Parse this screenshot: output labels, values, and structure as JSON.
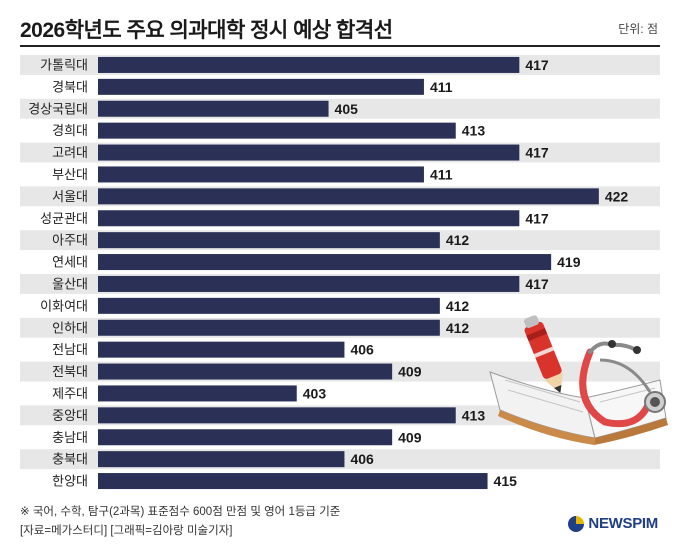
{
  "title": "2026학년도 주요 의과대학 정시 예상 합격선",
  "unit": "단위: 점",
  "footnote": "※ 국어, 수학, 탐구(2과목) 표준점수 600점 만점 및 영어 1등급 기준",
  "source": "[자료=메가스터디] [그래픽=김아랑 미술기자]",
  "brand": "NEWSPIM",
  "colors": {
    "bar": "#2a3056",
    "stripe": "#e7e7e7",
    "pencil": "#d9342b",
    "stethoscope": "#e04848"
  },
  "chart_data": {
    "type": "bar",
    "orientation": "horizontal",
    "categories": [
      "가톨릭대",
      "경북대",
      "경상국립대",
      "경희대",
      "고려대",
      "부산대",
      "서울대",
      "성균관대",
      "아주대",
      "연세대",
      "울산대",
      "이화여대",
      "인하대",
      "전남대",
      "전북대",
      "제주대",
      "중앙대",
      "충남대",
      "충북대",
      "한양대"
    ],
    "values": [
      417,
      411,
      405,
      413,
      417,
      411,
      422,
      417,
      412,
      419,
      417,
      412,
      412,
      406,
      409,
      403,
      413,
      409,
      406,
      415
    ],
    "xlabel": "",
    "ylabel": "",
    "grid": false
  }
}
